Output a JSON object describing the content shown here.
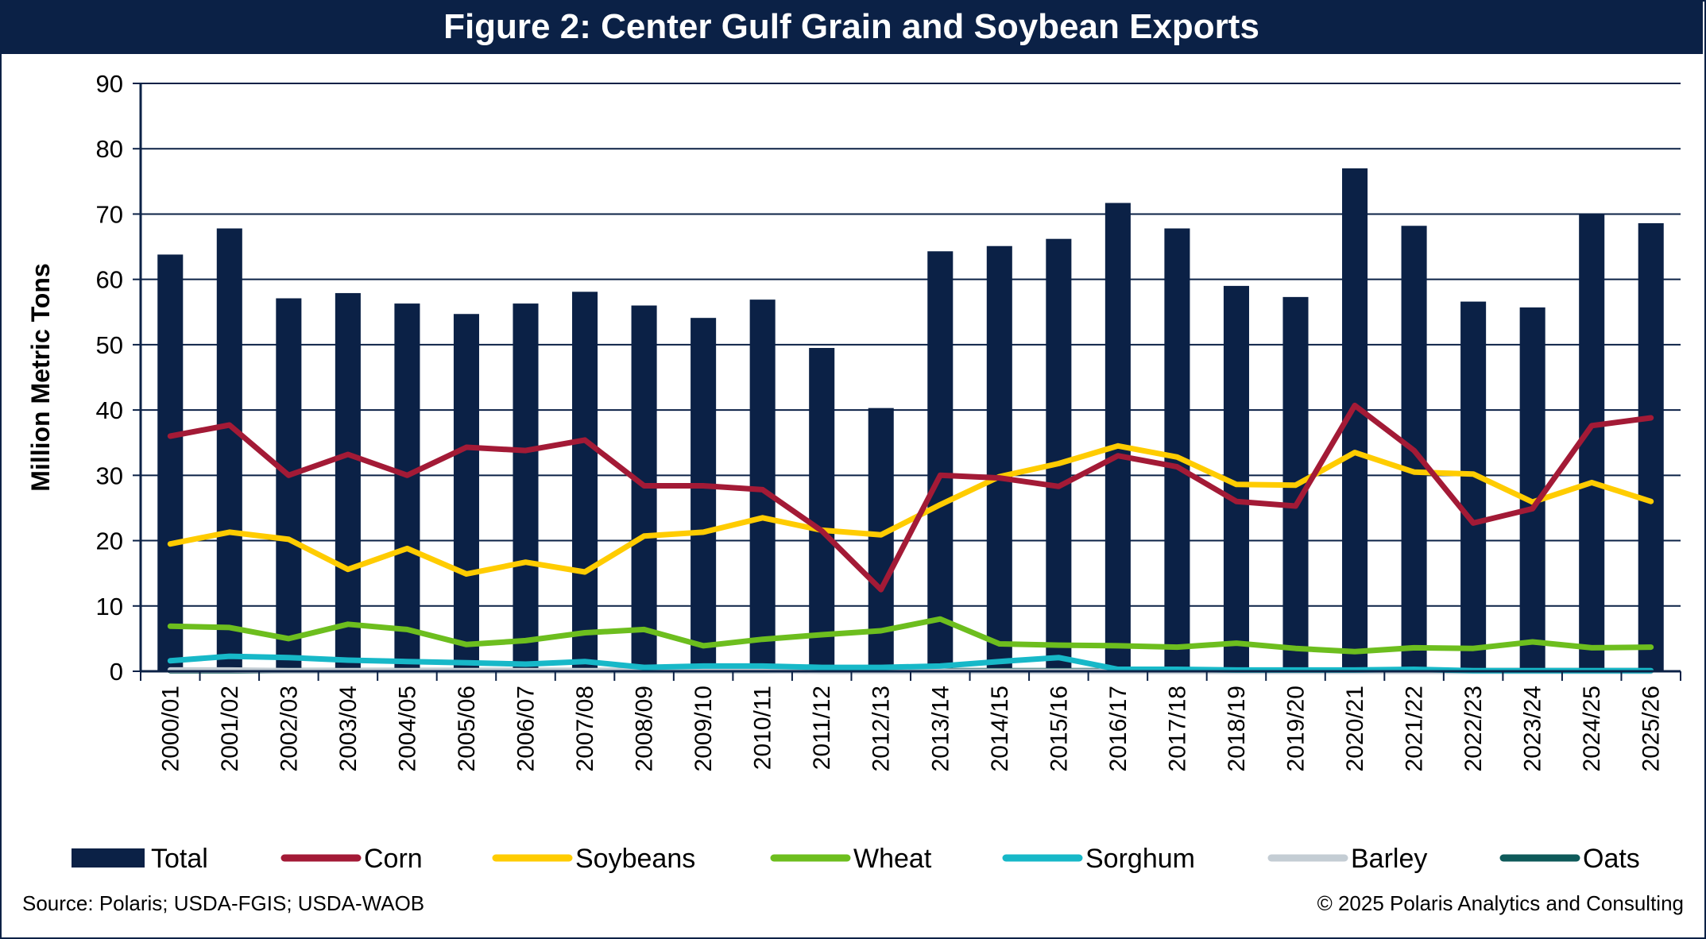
{
  "title": "Figure 2: Center Gulf Grain and Soybean Exports",
  "source": "Source: Polaris; USDA-FGIS; USDA-WAOB",
  "copyright": "© 2025 Polaris Analytics and Consulting",
  "chart_data": {
    "type": "bar",
    "ylabel": "Million Metric Tons",
    "xlabel": "",
    "ylim": [
      0,
      90
    ],
    "yticks": [
      0,
      10,
      20,
      30,
      40,
      50,
      60,
      70,
      80,
      90
    ],
    "grid": true,
    "legend_position": "bottom",
    "categories": [
      "2000/01",
      "2001/02",
      "2002/03",
      "2003/04",
      "2004/05",
      "2005/06",
      "2006/07",
      "2007/08",
      "2008/09",
      "2009/10",
      "2010/11",
      "2011/12",
      "2012/13",
      "2013/14",
      "2014/15",
      "2015/16",
      "2016/17",
      "2017/18",
      "2018/19",
      "2019/20",
      "2020/21",
      "2021/22",
      "2022/23",
      "2023/24",
      "2024/25",
      "2025/26"
    ],
    "series": [
      {
        "name": "Total",
        "type": "bar",
        "color": "#0b2146",
        "values": [
          63.8,
          67.8,
          57.1,
          57.9,
          56.3,
          54.7,
          56.3,
          58.1,
          56.0,
          54.1,
          56.9,
          49.5,
          40.3,
          64.3,
          65.1,
          66.2,
          71.7,
          67.8,
          59.0,
          57.3,
          77.0,
          68.2,
          56.6,
          55.7,
          70.0,
          68.6
        ]
      },
      {
        "name": "Corn",
        "type": "line",
        "color": "#a31a36",
        "values": [
          36.0,
          37.7,
          30.0,
          33.2,
          30.0,
          34.3,
          33.8,
          35.4,
          28.4,
          28.4,
          27.8,
          21.5,
          12.5,
          30.0,
          29.6,
          28.3,
          33.0,
          31.3,
          26.0,
          25.3,
          40.7,
          33.8,
          22.7,
          24.9,
          37.6,
          38.8
        ]
      },
      {
        "name": "Soybeans",
        "type": "line",
        "color": "#ffcc00",
        "values": [
          19.5,
          21.3,
          20.2,
          15.6,
          18.8,
          14.9,
          16.7,
          15.2,
          20.7,
          21.3,
          23.5,
          21.6,
          20.9,
          25.5,
          29.8,
          31.8,
          34.5,
          32.8,
          28.6,
          28.5,
          33.5,
          30.5,
          30.2,
          25.9,
          28.9,
          26.0
        ]
      },
      {
        "name": "Wheat",
        "type": "line",
        "color": "#6dbe1e",
        "values": [
          6.9,
          6.7,
          5.0,
          7.2,
          6.4,
          4.1,
          4.7,
          5.9,
          6.4,
          3.9,
          4.9,
          5.6,
          6.2,
          8.0,
          4.2,
          4.0,
          3.9,
          3.7,
          4.3,
          3.5,
          3.0,
          3.6,
          3.5,
          4.5,
          3.6,
          3.7
        ]
      },
      {
        "name": "Sorghum",
        "type": "line",
        "color": "#17b8c8",
        "values": [
          1.6,
          2.3,
          2.1,
          1.7,
          1.5,
          1.3,
          1.1,
          1.5,
          0.6,
          0.8,
          0.8,
          0.6,
          0.6,
          0.8,
          1.5,
          2.1,
          0.3,
          0.3,
          0.2,
          0.2,
          0.2,
          0.3,
          0.1,
          0.1,
          0.1,
          0.1
        ]
      },
      {
        "name": "Barley",
        "type": "line",
        "color": "#c4cdd4",
        "values": [
          0.2,
          0.2,
          0.1,
          0.1,
          0.1,
          0.1,
          0.1,
          0.1,
          0.1,
          0.1,
          0.1,
          0.0,
          0.0,
          0.0,
          0.0,
          0.0,
          0.0,
          0.0,
          0.0,
          0.0,
          0.0,
          0.0,
          0.0,
          0.0,
          0.0,
          0.0
        ]
      },
      {
        "name": "Oats",
        "type": "line",
        "color": "#0e5a5a",
        "values": [
          0.1,
          0.1,
          0.1,
          0.1,
          0.1,
          0.1,
          0.1,
          0.1,
          0.1,
          0.1,
          0.1,
          0.1,
          0.1,
          0.1,
          0.1,
          0.1,
          0.1,
          0.1,
          0.1,
          0.1,
          0.1,
          0.1,
          0.1,
          0.1,
          0.1,
          0.1
        ]
      }
    ]
  }
}
